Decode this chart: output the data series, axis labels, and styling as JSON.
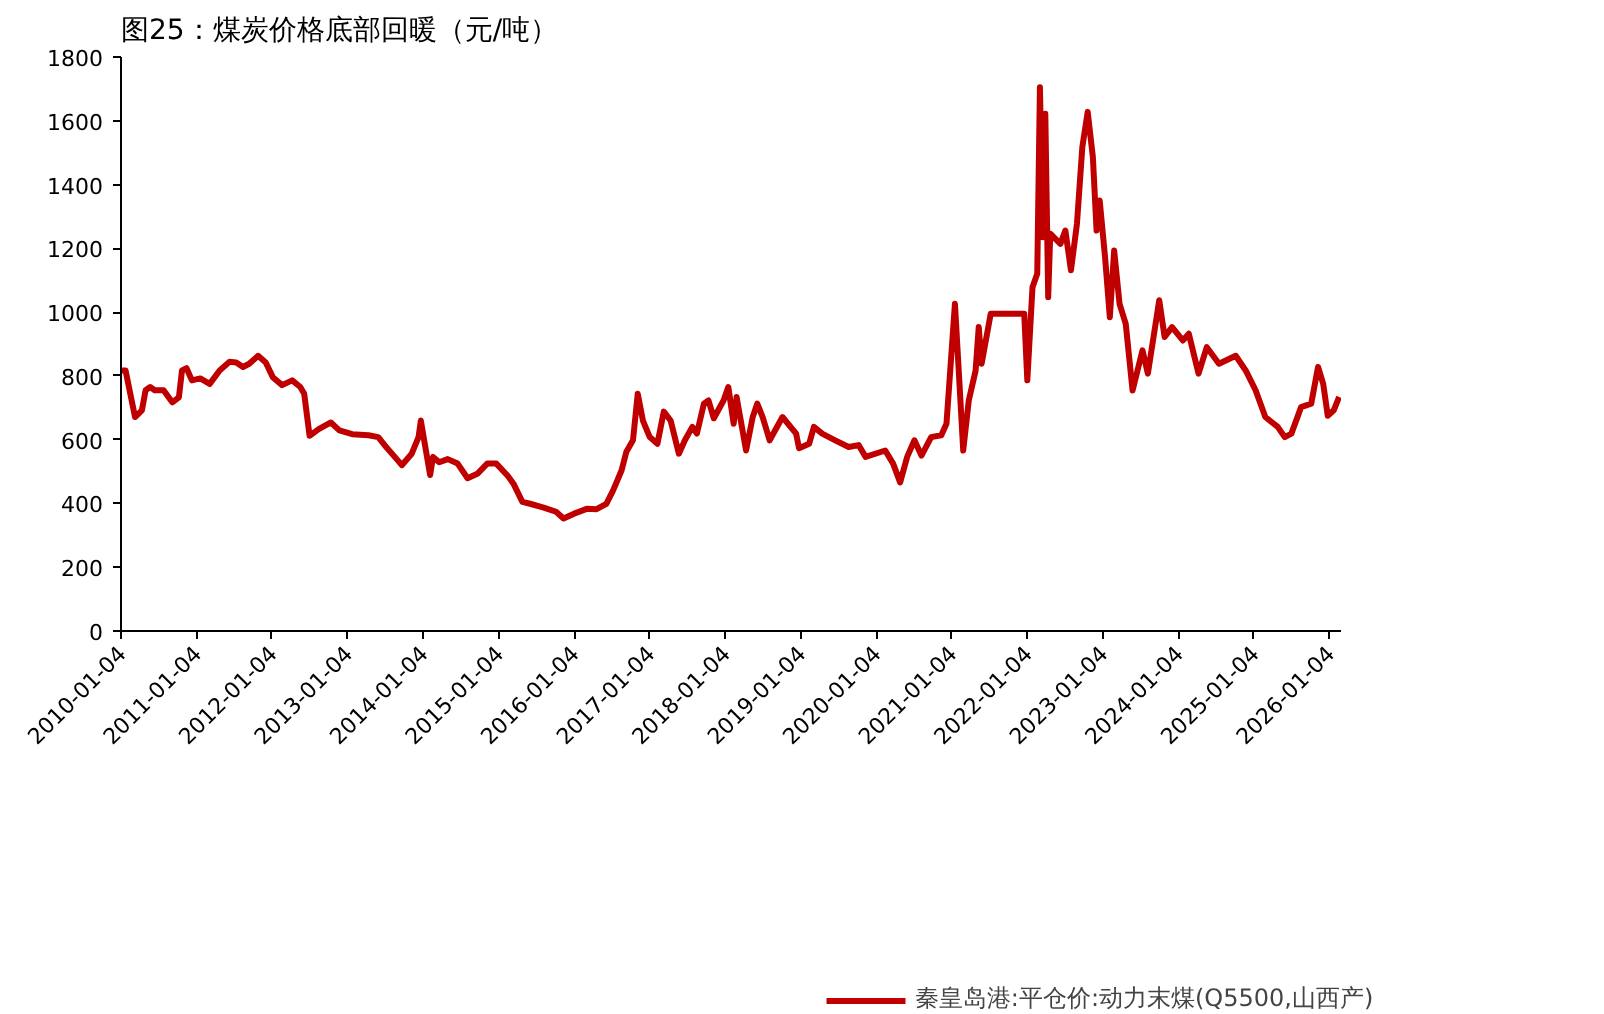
{
  "chart_data": {
    "type": "line",
    "title": "图25：煤炭价格底部回暖（元/吨）",
    "x": [
      "2010-01-04",
      "2010-01-26",
      "2010-02-21",
      "2010-03-13",
      "2010-04-15",
      "2010-05-03",
      "2010-05-25",
      "2010-06-16",
      "2010-07-29",
      "2010-09-09",
      "2010-10-11",
      "2010-10-26",
      "2010-11-17",
      "2010-12-13",
      "2011-01-22",
      "2011-03-09",
      "2011-04-26",
      "2011-06-13",
      "2011-07-15",
      "2011-08-17",
      "2011-09-16",
      "2011-10-29",
      "2011-12-05",
      "2012-01-08",
      "2012-02-22",
      "2012-04-11",
      "2012-05-20",
      "2012-06-08",
      "2012-07-04",
      "2012-08-17",
      "2012-10-15",
      "2012-11-25",
      "2013-01-26",
      "2013-04-15",
      "2013-06-01",
      "2013-07-04",
      "2013-08-20",
      "2013-09-23",
      "2013-11-10",
      "2013-12-13",
      "2013-12-24",
      "2014-01-12",
      "2014-02-07",
      "2014-02-21",
      "2014-03-23",
      "2014-05-03",
      "2014-06-20",
      "2014-08-07",
      "2014-09-23",
      "2014-11-10",
      "2014-12-24",
      "2015-02-17",
      "2015-03-17",
      "2015-04-29",
      "2015-06-05",
      "2015-08-10",
      "2015-10-09",
      "2015-11-14",
      "2016-01-04",
      "2016-03-05",
      "2016-04-22",
      "2016-06-08",
      "2016-07-11",
      "2016-08-21",
      "2016-09-13",
      "2016-10-15",
      "2016-11-07",
      "2016-12-02",
      "2017-01-04",
      "2017-02-10",
      "2017-03-13",
      "2017-04-15",
      "2017-05-25",
      "2017-06-23",
      "2017-07-29",
      "2017-08-20",
      "2017-09-23",
      "2017-10-15",
      "2017-11-10",
      "2017-12-27",
      "2018-01-19",
      "2018-02-14",
      "2018-02-28",
      "2018-04-15",
      "2018-05-17",
      "2018-06-08",
      "2018-07-04",
      "2018-08-07",
      "2018-10-08",
      "2018-12-13",
      "2018-12-27",
      "2019-02-14",
      "2019-03-09",
      "2019-04-18",
      "2019-06-20",
      "2019-08-24",
      "2019-10-11",
      "2019-11-14",
      "2020-02-17",
      "2020-03-26",
      "2020-04-29",
      "2020-06-02",
      "2020-07-07",
      "2020-08-10",
      "2020-09-26",
      "2020-11-14",
      "2020-12-09",
      "2021-01-19",
      "2021-02-10",
      "2021-02-28",
      "2021-03-27",
      "2021-04-29",
      "2021-05-14",
      "2021-05-28",
      "2021-07-11",
      "2021-12-20",
      "2022-01-04",
      "2022-01-29",
      "2022-02-21",
      "2022-03-06",
      "2022-03-20",
      "2022-04-01",
      "2022-04-15",
      "2022-04-25",
      "2022-06-13",
      "2022-07-07",
      "2022-08-03",
      "2022-09-01",
      "2022-09-27",
      "2022-10-23",
      "2022-11-17",
      "2022-12-05",
      "2022-12-20",
      "2023-01-15",
      "2023-02-07",
      "2023-02-28",
      "2023-03-26",
      "2023-04-25",
      "2023-05-28",
      "2023-07-15",
      "2023-08-10",
      "2023-10-04",
      "2023-10-30",
      "2023-12-05",
      "2024-01-26",
      "2024-02-24",
      "2024-04-11",
      "2024-05-21",
      "2024-07-19",
      "2024-10-08",
      "2024-11-25",
      "2025-01-12",
      "2025-02-28",
      "2025-04-29",
      "2025-06-02",
      "2025-07-04",
      "2025-08-20",
      "2025-10-08",
      "2025-11-10",
      "2025-12-05",
      "2025-12-27",
      "2026-01-25",
      "2026-02-20"
    ],
    "series": [
      {
        "name": "秦皇岛港:平仓价:动力末煤(Q5500,山西产)",
        "color": "#c00000",
        "values": [
          817,
          817,
          734,
          671,
          692,
          755,
          765,
          755,
          755,
          717,
          733,
          817,
          824,
          786,
          792,
          775,
          817,
          844,
          842,
          828,
          838,
          863,
          842,
          796,
          771,
          786,
          765,
          744,
          612,
          633,
          654,
          629,
          617,
          614,
          608,
          581,
          546,
          520,
          556,
          608,
          660,
          587,
          489,
          546,
          529,
          539,
          525,
          479,
          493,
          525,
          525,
          487,
          462,
          405,
          399,
          387,
          374,
          353,
          368,
          383,
          382,
          399,
          441,
          504,
          562,
          598,
          744,
          660,
          608,
          587,
          688,
          660,
          556,
          598,
          640,
          619,
          713,
          723,
          667,
          723,
          765,
          650,
          734,
          566,
          671,
          713,
          671,
          598,
          671,
          619,
          573,
          587,
          640,
          619,
          598,
          577,
          583,
          546,
          566,
          525,
          466,
          546,
          598,
          550,
          608,
          614,
          650,
          1026,
          775,
          566,
          723,
          817,
          953,
          838,
          995,
          995,
          786,
          1078,
          1120,
          1705,
          1235,
          1622,
          1047,
          1246,
          1214,
          1256,
          1131,
          1277,
          1517,
          1628,
          1486,
          1256,
          1350,
          1172,
          984,
          1193,
          1026,
          963,
          754,
          880,
          807,
          1037,
          922,
          953,
          911,
          932,
          807,
          890,
          838,
          863,
          817,
          755,
          671,
          640,
          608,
          619,
          702,
          713,
          828,
          775,
          675,
          692,
          734
        ]
      }
    ],
    "xlim": [
      "2010-01-04",
      "2026-03-01"
    ],
    "xticks": [
      "2010-01-04",
      "2011-01-04",
      "2012-01-04",
      "2013-01-04",
      "2014-01-04",
      "2015-01-04",
      "2016-01-04",
      "2017-01-04",
      "2018-01-04",
      "2019-01-04",
      "2020-01-04",
      "2021-01-04",
      "2022-01-04",
      "2023-01-04",
      "2024-01-04",
      "2025-01-04",
      "2026-01-04"
    ],
    "ylim": [
      0,
      1800
    ],
    "yticks": [
      0,
      200,
      400,
      600,
      800,
      1000,
      1200,
      1400,
      1600,
      1800
    ],
    "grid": false,
    "legend": "bottom",
    "marker": "none",
    "line_style": "solid"
  }
}
